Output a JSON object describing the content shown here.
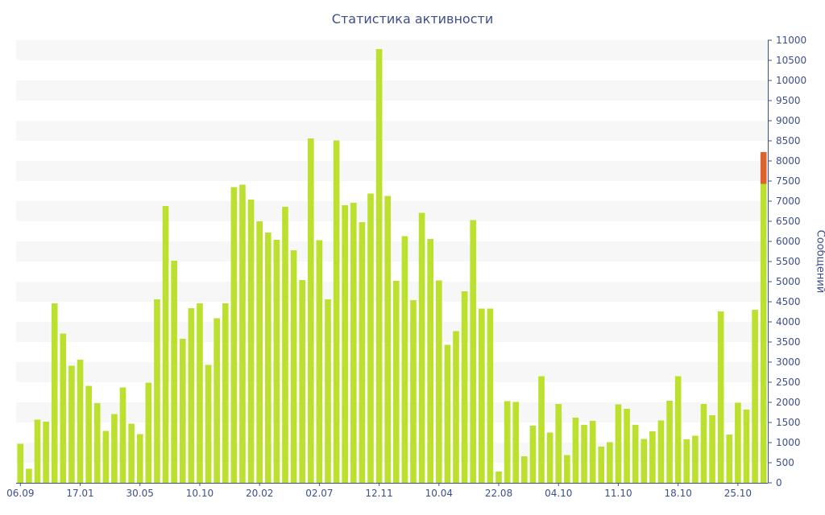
{
  "chart_data": {
    "type": "bar",
    "title": "Статистика активности",
    "xlabel": "",
    "ylabel": "Сообщений",
    "ylim": [
      0,
      11000
    ],
    "y_ticks": [
      0,
      500,
      1000,
      1500,
      2000,
      2500,
      3000,
      3500,
      4000,
      4500,
      5000,
      5500,
      6000,
      6500,
      7000,
      7500,
      8000,
      8500,
      9000,
      9500,
      10000,
      10500,
      11000
    ],
    "x_tick_labels": [
      {
        "index": 0,
        "label": "06.09"
      },
      {
        "index": 7,
        "label": "17.01"
      },
      {
        "index": 14,
        "label": "30.05"
      },
      {
        "index": 21,
        "label": "10.10"
      },
      {
        "index": 28,
        "label": "20.02"
      },
      {
        "index": 35,
        "label": "02.07"
      },
      {
        "index": 42,
        "label": "12.11"
      },
      {
        "index": 49,
        "label": "10.04"
      },
      {
        "index": 56,
        "label": "22.08"
      },
      {
        "index": 63,
        "label": "04.10"
      },
      {
        "index": 70,
        "label": "11.10"
      },
      {
        "index": 77,
        "label": "18.10"
      },
      {
        "index": 84,
        "label": "25.10"
      }
    ],
    "grid": "horizontal bands",
    "axis_position": "right",
    "colors": {
      "primary": "#bbe02e",
      "highlight": "#e0622a",
      "band": "#f7f7f7",
      "axis": "#3d4f8a"
    },
    "series": [
      {
        "values": [
          970,
          350,
          1570,
          1520,
          4460,
          3710,
          2910,
          3060,
          2410,
          1980,
          1290,
          1710,
          2370,
          1470,
          1210,
          2490,
          4560,
          6880,
          5520,
          3580,
          4340,
          4460,
          2930,
          4090,
          4460,
          7350,
          7410,
          7040,
          6500,
          6220,
          6040,
          6860,
          5780,
          5040,
          8560,
          6030,
          4560,
          8510,
          6900,
          6960,
          6480,
          7190,
          10780,
          7130,
          5020,
          6130,
          4540,
          6710,
          6060,
          5030,
          3430,
          3770,
          4760,
          6530,
          4330,
          4330,
          280,
          2030,
          2010,
          660,
          1420,
          2650,
          1250,
          1960,
          690,
          1620,
          1440,
          1540,
          900,
          1010,
          1950,
          1840,
          1440,
          1090,
          1280,
          1550,
          2040,
          2650,
          1080,
          1170,
          1960,
          1680,
          4260,
          1200,
          1990,
          1820,
          4300,
          7430
        ]
      },
      {
        "values": [
          0,
          0,
          0,
          0,
          0,
          0,
          0,
          0,
          0,
          0,
          0,
          0,
          0,
          0,
          0,
          0,
          0,
          0,
          0,
          0,
          0,
          0,
          0,
          0,
          0,
          0,
          0,
          0,
          0,
          0,
          0,
          0,
          0,
          0,
          0,
          0,
          0,
          0,
          0,
          0,
          0,
          0,
          0,
          0,
          0,
          0,
          0,
          0,
          0,
          0,
          0,
          0,
          0,
          0,
          0,
          0,
          0,
          0,
          0,
          0,
          0,
          0,
          0,
          0,
          0,
          0,
          0,
          0,
          0,
          0,
          0,
          0,
          0,
          0,
          0,
          0,
          0,
          0,
          0,
          0,
          0,
          0,
          0,
          0,
          0,
          0,
          0,
          790
        ]
      }
    ]
  }
}
